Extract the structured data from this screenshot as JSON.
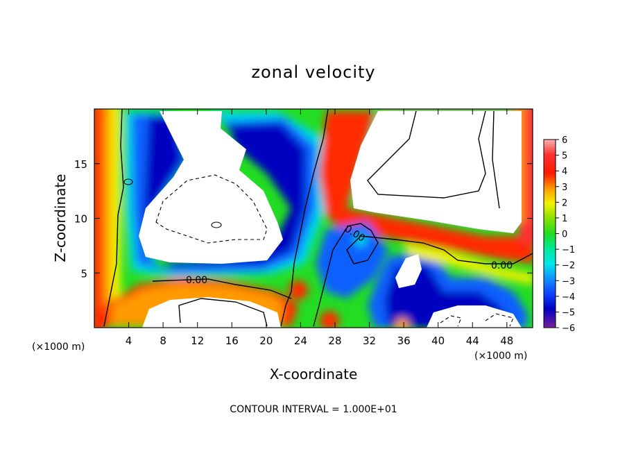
{
  "chart_data": {
    "type": "heatmap",
    "title": "zonal velocity",
    "xlabel": "X-coordinate",
    "ylabel": "Z-coordinate",
    "x_unit": "(×1000 m)",
    "xlim": [
      0,
      51
    ],
    "ylim": [
      0,
      20
    ],
    "x_ticks": [
      4,
      8,
      12,
      16,
      20,
      24,
      28,
      32,
      36,
      40,
      44,
      48
    ],
    "y_ticks": [
      5,
      10,
      15
    ],
    "colorbar": {
      "ticks": [
        6,
        5,
        4,
        3,
        2,
        1,
        0,
        -1,
        -2,
        -3,
        -4,
        -5,
        -6
      ],
      "range": [
        -6,
        6
      ]
    },
    "contour_labels": [
      "0.00",
      "0.00",
      "0.00"
    ],
    "footer": "CONTOUR INTERVAL = 1.000E+01",
    "colors": {
      "pos_high": "#f5a0a0",
      "red": "#ff2020",
      "orange": "#ff9a00",
      "yellow": "#f2f200",
      "green": "#22dd22",
      "cyan": "#00e8e8",
      "blue": "#1060ff",
      "navy": "#0000c0",
      "purple": "#7a1fa0"
    }
  }
}
